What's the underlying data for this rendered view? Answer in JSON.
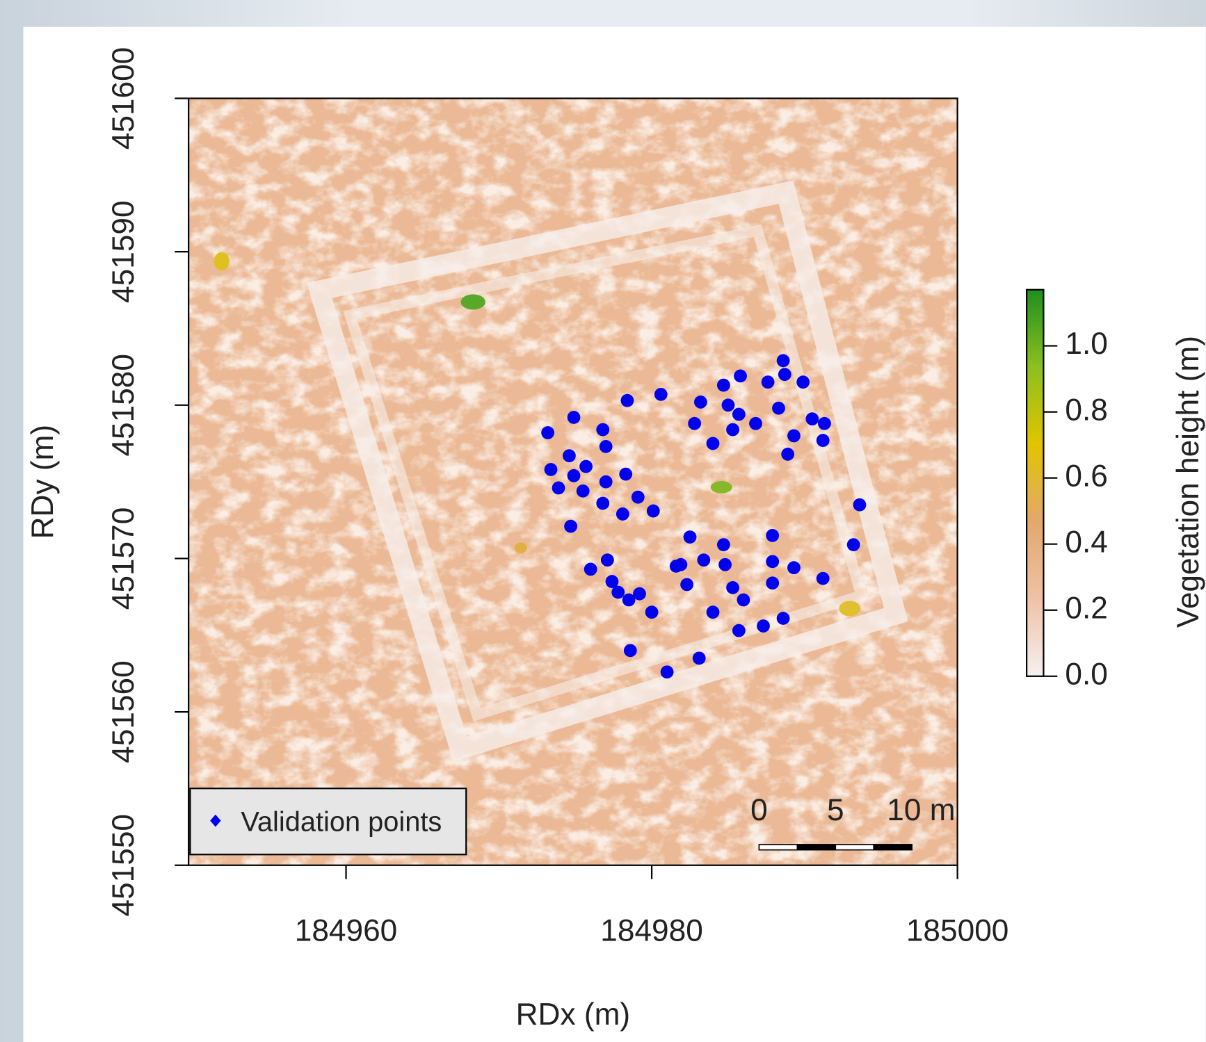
{
  "chart_data": {
    "type": "scatter",
    "x_label": "RDx (m)",
    "y_label": "RDy (m)",
    "xlim": [
      184949.7,
      185000
    ],
    "ylim": [
      451550,
      451600
    ],
    "xticks": [
      184960,
      184980,
      185000
    ],
    "yticks": [
      451550,
      451560,
      451570,
      451580,
      451590,
      451600
    ],
    "legend": "bottom-left",
    "series": [
      {
        "name": "Validation points",
        "color": "#0000ee",
        "x": [
          184973.2,
          184974.9,
          184976.8,
          184978.4,
          184980.6,
          184983.2,
          184984.7,
          184985.8,
          184987.6,
          184988.6,
          184988.7,
          184989.9,
          184982.8,
          184985.0,
          184985.7,
          184986.8,
          184985.3,
          184988.3,
          184990.5,
          184991.3,
          184989.3,
          184991.2,
          184988.9,
          184984.0,
          184977.0,
          184973.4,
          184974.6,
          184975.7,
          184974.9,
          184973.9,
          184975.5,
          184977.0,
          184978.3,
          184976.8,
          184978.1,
          184979.1,
          184980.1,
          184974.7,
          184993.6,
          184993.2,
          184982.5,
          184984.7,
          184987.9,
          184977.1,
          184981.9,
          184983.4,
          184984.8,
          184976.0,
          184977.4,
          184977.8,
          184979.2,
          184981.6,
          184982.3,
          184985.3,
          184986.0,
          184987.9,
          184989.3,
          184987.9,
          184991.2,
          184978.5,
          184980.0,
          184984.0,
          184985.7,
          184987.3,
          184988.6,
          184978.6,
          184981.0,
          184983.1
        ],
        "y": [
          451578.2,
          451579.2,
          451578.4,
          451580.3,
          451580.7,
          451580.2,
          451581.3,
          451581.9,
          451581.5,
          451582.9,
          451582.0,
          451581.5,
          451578.8,
          451580.0,
          451579.4,
          451578.8,
          451578.4,
          451579.8,
          451579.1,
          451578.8,
          451578.0,
          451577.7,
          451576.8,
          451577.5,
          451577.3,
          451575.8,
          451576.7,
          451576.0,
          451575.4,
          451574.6,
          451574.4,
          451575.0,
          451575.5,
          451573.6,
          451572.9,
          451574.0,
          451573.1,
          451572.1,
          451573.5,
          451570.9,
          451571.4,
          451570.9,
          451571.5,
          451569.9,
          451569.6,
          451569.9,
          451569.6,
          451569.3,
          451568.5,
          451567.8,
          451567.7,
          451569.5,
          451568.3,
          451568.1,
          451567.3,
          451569.8,
          451569.4,
          451568.4,
          451568.7,
          451567.3,
          451566.5,
          451566.5,
          451565.3,
          451565.6,
          451566.1,
          451564.0,
          451562.6,
          451563.5
        ]
      }
    ],
    "colorbar": {
      "label": "Vegetation height (m)",
      "lim": [
        0,
        1.17
      ],
      "ticks": [
        {
          "value": 0,
          "label": "0.0"
        },
        {
          "value": 0.2,
          "label": "0.2"
        },
        {
          "value": 0.4,
          "label": "0.4"
        },
        {
          "value": 0.6,
          "label": "0.6"
        },
        {
          "value": 0.8,
          "label": "0.8"
        },
        {
          "value": 1.0,
          "label": "1.0"
        }
      ],
      "colors": [
        "#f6f0f0",
        "#efc2a6",
        "#e3a86c",
        "#e2c400",
        "#8cc020",
        "#1e8f1e"
      ]
    },
    "scale_bar": {
      "ticks": [
        {
          "value": 0,
          "label": "0"
        },
        {
          "value": 5,
          "label": "5"
        },
        {
          "value": 10,
          "label": "10 m"
        }
      ]
    }
  }
}
